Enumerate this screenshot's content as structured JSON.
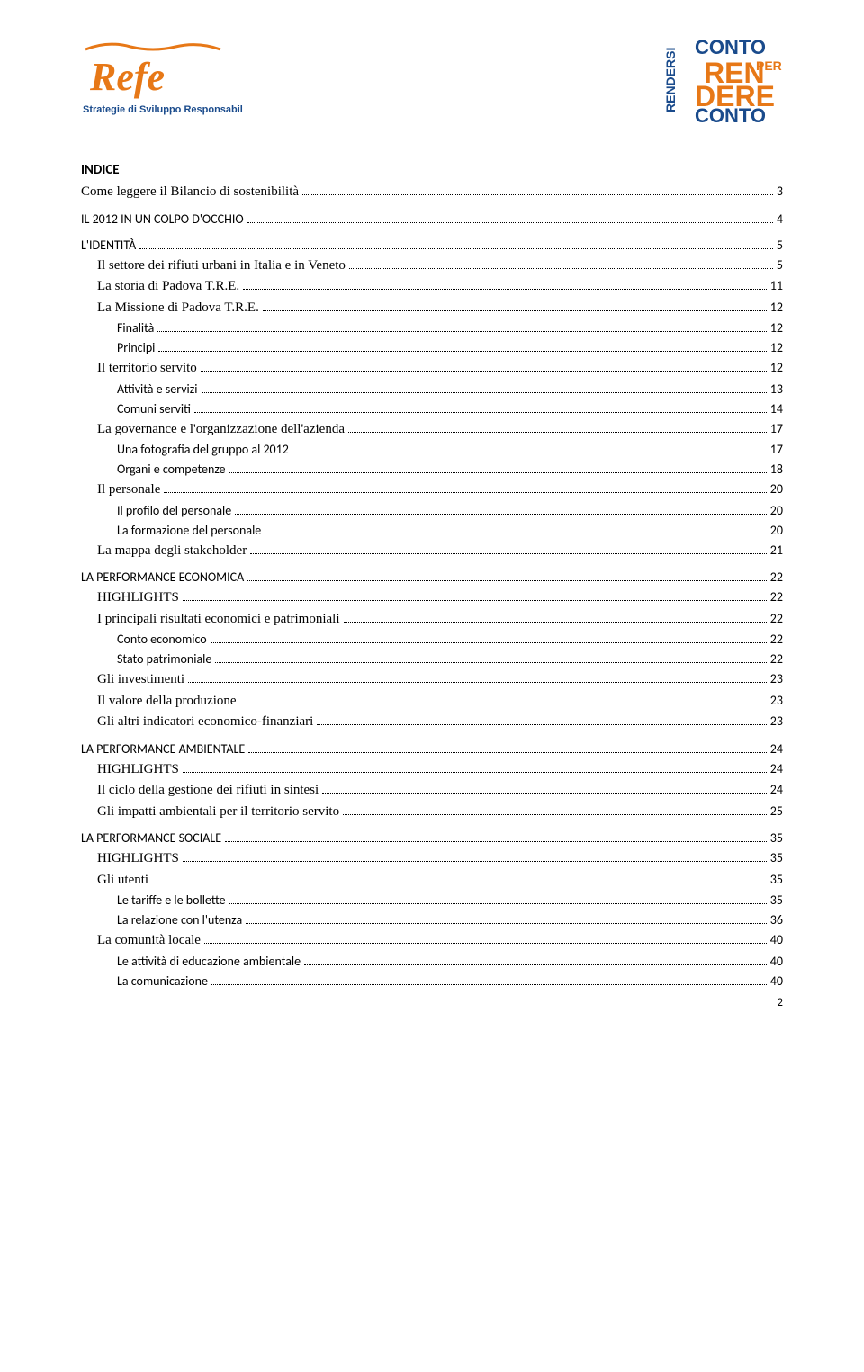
{
  "logo_left": {
    "name": "Refe",
    "tagline": "Strategie di Sviluppo Responsabile",
    "name_color": "#e77817",
    "tagline_color": "#1a4b8c"
  },
  "logo_right": {
    "line1": "RENDERSI",
    "line2": "CONTO",
    "line3": "PER",
    "line4": "REN",
    "line5": "DERE",
    "line6": "CONTO",
    "orange": "#e77817",
    "blue": "#1a4b8c"
  },
  "heading": "INDICE",
  "toc": [
    {
      "label": "Come leggere il Bilancio di sostenibilità",
      "page": "3",
      "level": 0,
      "serif": true
    },
    {
      "label": "IL 2012 IN UN COLPO D'OCCHIO",
      "page": "4",
      "level": 0,
      "serif": false
    },
    {
      "label": "L'IDENTITÀ",
      "page": "5",
      "level": 0,
      "serif": false
    },
    {
      "label": "Il settore dei rifiuti urbani in Italia e in Veneto",
      "page": "5",
      "level": 1,
      "serif": true
    },
    {
      "label": "La storia di Padova T.R.E.",
      "page": "11",
      "level": 1,
      "serif": true
    },
    {
      "label": "La Missione di Padova T.R.E.",
      "page": "12",
      "level": 1,
      "serif": true
    },
    {
      "label": "Finalità",
      "page": "12",
      "level": 2,
      "serif": false
    },
    {
      "label": "Principi",
      "page": "12",
      "level": 2,
      "serif": false
    },
    {
      "label": "Il territorio servito",
      "page": "12",
      "level": 1,
      "serif": true
    },
    {
      "label": "Attività e servizi",
      "page": "13",
      "level": 2,
      "serif": false
    },
    {
      "label": "Comuni serviti",
      "page": "14",
      "level": 2,
      "serif": false
    },
    {
      "label": "La governance e l'organizzazione dell'azienda",
      "page": "17",
      "level": 1,
      "serif": true
    },
    {
      "label": "Una fotografia del gruppo al 2012",
      "page": "17",
      "level": 2,
      "serif": false
    },
    {
      "label": "Organi e competenze",
      "page": "18",
      "level": 2,
      "serif": false
    },
    {
      "label": "Il personale",
      "page": "20",
      "level": 1,
      "serif": true
    },
    {
      "label": "Il profilo del personale",
      "page": "20",
      "level": 2,
      "serif": false
    },
    {
      "label": "La formazione del personale",
      "page": "20",
      "level": 2,
      "serif": false
    },
    {
      "label": "La mappa degli stakeholder",
      "page": "21",
      "level": 1,
      "serif": true
    },
    {
      "label": "LA PERFORMANCE ECONOMICA",
      "page": "22",
      "level": 0,
      "serif": false
    },
    {
      "label": "HIGHLIGHTS",
      "page": "22",
      "level": 1,
      "serif": true
    },
    {
      "label": "I principali risultati economici e patrimoniali",
      "page": "22",
      "level": 1,
      "serif": true
    },
    {
      "label": "Conto economico",
      "page": "22",
      "level": 2,
      "serif": false
    },
    {
      "label": "Stato patrimoniale",
      "page": "22",
      "level": 2,
      "serif": false
    },
    {
      "label": "Gli investimenti",
      "page": "23",
      "level": 1,
      "serif": true
    },
    {
      "label": "Il valore della produzione",
      "page": "23",
      "level": 1,
      "serif": true
    },
    {
      "label": "Gli altri indicatori economico-finanziari",
      "page": "23",
      "level": 1,
      "serif": true
    },
    {
      "label": "LA PERFORMANCE AMBIENTALE",
      "page": "24",
      "level": 0,
      "serif": false
    },
    {
      "label": "HIGHLIGHTS",
      "page": "24",
      "level": 1,
      "serif": true
    },
    {
      "label": "Il ciclo della gestione dei rifiuti in sintesi",
      "page": "24",
      "level": 1,
      "serif": true
    },
    {
      "label": "Gli impatti ambientali per il territorio servito",
      "page": "25",
      "level": 1,
      "serif": true
    },
    {
      "label": "LA PERFORMANCE SOCIALE",
      "page": "35",
      "level": 0,
      "serif": false
    },
    {
      "label": "HIGHLIGHTS",
      "page": "35",
      "level": 1,
      "serif": true
    },
    {
      "label": "Gli utenti",
      "page": "35",
      "level": 1,
      "serif": true
    },
    {
      "label": "Le tariffe e le bollette",
      "page": "35",
      "level": 2,
      "serif": false
    },
    {
      "label": "La relazione con l'utenza",
      "page": "36",
      "level": 2,
      "serif": false
    },
    {
      "label": "La comunità locale",
      "page": "40",
      "level": 1,
      "serif": true
    },
    {
      "label": "Le attività di educazione ambientale",
      "page": "40",
      "level": 2,
      "serif": false
    },
    {
      "label": "La comunicazione",
      "page": "40",
      "level": 2,
      "serif": false
    }
  ],
  "footer_page": "2"
}
